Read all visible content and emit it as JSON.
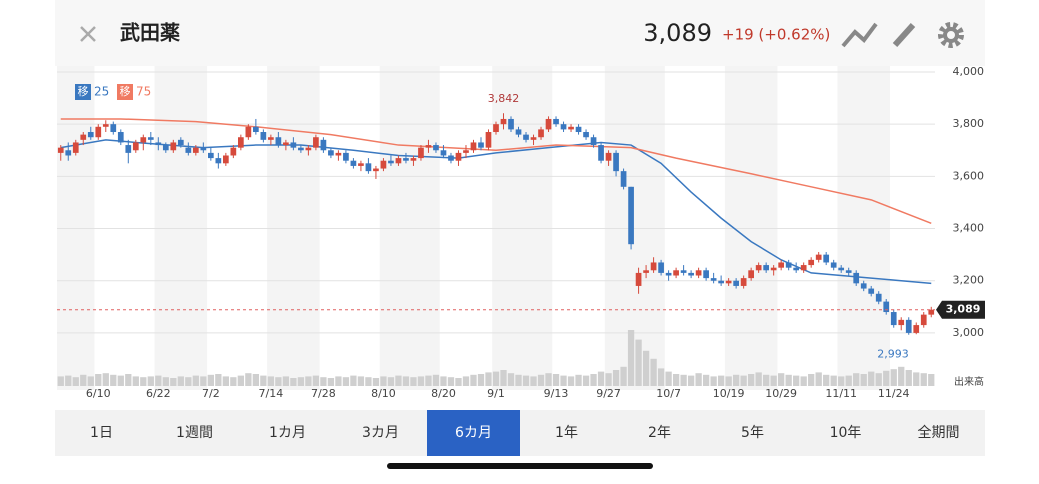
{
  "header": {
    "title": "武田薬",
    "price": {
      "value": 3089,
      "label": "3,089"
    },
    "change": "+19 (+0.62%)"
  },
  "chart_data": {
    "type": "candlestick",
    "categories": [
      null,
      null,
      null,
      null,
      null,
      "6/10",
      null,
      null,
      null,
      null,
      null,
      null,
      null,
      "6/22",
      null,
      null,
      null,
      null,
      null,
      null,
      "7/2",
      null,
      null,
      null,
      null,
      null,
      null,
      null,
      "7/14",
      null,
      null,
      null,
      null,
      null,
      null,
      "7/28",
      null,
      null,
      null,
      null,
      null,
      null,
      null,
      "8/10",
      null,
      null,
      null,
      null,
      null,
      null,
      null,
      "8/20",
      null,
      null,
      null,
      null,
      null,
      null,
      "9/1",
      null,
      null,
      null,
      null,
      null,
      null,
      null,
      "9/13",
      null,
      null,
      null,
      null,
      null,
      null,
      "9/27",
      null,
      null,
      null,
      null,
      null,
      null,
      null,
      "10/7",
      null,
      null,
      null,
      null,
      null,
      null,
      null,
      "10/19",
      null,
      null,
      null,
      null,
      null,
      null,
      "10/29",
      null,
      null,
      null,
      null,
      null,
      null,
      null,
      "11/11",
      null,
      null,
      null,
      null,
      null,
      null,
      "11/24",
      null,
      null,
      null,
      null,
      null
    ],
    "candles": [
      [
        3690,
        3720,
        3660,
        3710
      ],
      [
        3700,
        3730,
        3660,
        3680
      ],
      [
        3690,
        3740,
        3680,
        3730
      ],
      [
        3740,
        3770,
        3720,
        3760
      ],
      [
        3770,
        3790,
        3740,
        3750
      ],
      [
        3750,
        3800,
        3740,
        3790
      ],
      [
        3790,
        3815,
        3770,
        3800
      ],
      [
        3800,
        3810,
        3760,
        3770
      ],
      [
        3770,
        3780,
        3720,
        3730
      ],
      [
        3720,
        3740,
        3650,
        3690
      ],
      [
        3700,
        3740,
        3690,
        3730
      ],
      [
        3730,
        3760,
        3700,
        3750
      ],
      [
        3750,
        3770,
        3720,
        3740
      ],
      [
        3730,
        3750,
        3700,
        3720
      ],
      [
        3720,
        3730,
        3690,
        3700
      ],
      [
        3700,
        3740,
        3690,
        3730
      ],
      [
        3740,
        3750,
        3710,
        3720
      ],
      [
        3710,
        3730,
        3680,
        3690
      ],
      [
        3690,
        3720,
        3680,
        3710
      ],
      [
        3710,
        3730,
        3690,
        3700
      ],
      [
        3690,
        3710,
        3660,
        3670
      ],
      [
        3670,
        3690,
        3630,
        3650
      ],
      [
        3650,
        3690,
        3640,
        3680
      ],
      [
        3680,
        3720,
        3670,
        3710
      ],
      [
        3710,
        3760,
        3700,
        3750
      ],
      [
        3750,
        3800,
        3740,
        3790
      ],
      [
        3790,
        3820,
        3760,
        3770
      ],
      [
        3770,
        3780,
        3730,
        3740
      ],
      [
        3740,
        3760,
        3720,
        3750
      ],
      [
        3750,
        3770,
        3710,
        3720
      ],
      [
        3720,
        3740,
        3700,
        3730
      ],
      [
        3730,
        3750,
        3700,
        3710
      ],
      [
        3710,
        3720,
        3690,
        3700
      ],
      [
        3700,
        3720,
        3680,
        3710
      ],
      [
        3710,
        3760,
        3700,
        3750
      ],
      [
        3740,
        3750,
        3690,
        3700
      ],
      [
        3700,
        3710,
        3670,
        3680
      ],
      [
        3680,
        3700,
        3660,
        3690
      ],
      [
        3690,
        3700,
        3650,
        3660
      ],
      [
        3660,
        3670,
        3630,
        3640
      ],
      [
        3640,
        3660,
        3620,
        3650
      ],
      [
        3650,
        3670,
        3610,
        3620
      ],
      [
        3620,
        3640,
        3590,
        3630
      ],
      [
        3630,
        3670,
        3620,
        3660
      ],
      [
        3660,
        3680,
        3640,
        3650
      ],
      [
        3650,
        3680,
        3640,
        3670
      ],
      [
        3670,
        3690,
        3650,
        3660
      ],
      [
        3660,
        3680,
        3640,
        3670
      ],
      [
        3670,
        3720,
        3660,
        3710
      ],
      [
        3710,
        3740,
        3690,
        3720
      ],
      [
        3720,
        3730,
        3690,
        3700
      ],
      [
        3700,
        3720,
        3670,
        3680
      ],
      [
        3680,
        3690,
        3650,
        3660
      ],
      [
        3660,
        3700,
        3640,
        3690
      ],
      [
        3690,
        3720,
        3670,
        3700
      ],
      [
        3700,
        3740,
        3690,
        3730
      ],
      [
        3730,
        3750,
        3700,
        3710
      ],
      [
        3710,
        3780,
        3700,
        3770
      ],
      [
        3770,
        3810,
        3760,
        3800
      ],
      [
        3800,
        3842,
        3780,
        3820
      ],
      [
        3820,
        3830,
        3770,
        3780
      ],
      [
        3780,
        3790,
        3750,
        3760
      ],
      [
        3760,
        3770,
        3730,
        3740
      ],
      [
        3740,
        3760,
        3720,
        3750
      ],
      [
        3750,
        3790,
        3740,
        3780
      ],
      [
        3780,
        3830,
        3770,
        3820
      ],
      [
        3820,
        3830,
        3790,
        3800
      ],
      [
        3800,
        3810,
        3770,
        3780
      ],
      [
        3780,
        3800,
        3770,
        3790
      ],
      [
        3790,
        3800,
        3760,
        3770
      ],
      [
        3770,
        3780,
        3740,
        3750
      ],
      [
        3750,
        3760,
        3710,
        3720
      ],
      [
        3720,
        3730,
        3650,
        3660
      ],
      [
        3660,
        3700,
        3640,
        3690
      ],
      [
        3690,
        3700,
        3600,
        3620
      ],
      [
        3620,
        3630,
        3550,
        3560
      ],
      [
        3560,
        3560,
        3320,
        3340
      ],
      [
        3180,
        3250,
        3150,
        3230
      ],
      [
        3230,
        3260,
        3210,
        3240
      ],
      [
        3240,
        3290,
        3230,
        3270
      ],
      [
        3270,
        3280,
        3220,
        3230
      ],
      [
        3230,
        3240,
        3200,
        3220
      ],
      [
        3220,
        3250,
        3210,
        3240
      ],
      [
        3240,
        3260,
        3220,
        3230
      ],
      [
        3230,
        3240,
        3210,
        3220
      ],
      [
        3220,
        3250,
        3210,
        3240
      ],
      [
        3240,
        3250,
        3200,
        3210
      ],
      [
        3210,
        3230,
        3190,
        3200
      ],
      [
        3200,
        3220,
        3180,
        3190
      ],
      [
        3190,
        3210,
        3180,
        3200
      ],
      [
        3200,
        3210,
        3170,
        3180
      ],
      [
        3180,
        3220,
        3170,
        3210
      ],
      [
        3210,
        3250,
        3200,
        3240
      ],
      [
        3240,
        3270,
        3230,
        3260
      ],
      [
        3260,
        3270,
        3230,
        3240
      ],
      [
        3240,
        3260,
        3220,
        3250
      ],
      [
        3250,
        3280,
        3240,
        3270
      ],
      [
        3270,
        3280,
        3240,
        3250
      ],
      [
        3250,
        3270,
        3230,
        3240
      ],
      [
        3240,
        3270,
        3230,
        3260
      ],
      [
        3260,
        3290,
        3250,
        3280
      ],
      [
        3280,
        3310,
        3270,
        3300
      ],
      [
        3300,
        3310,
        3260,
        3270
      ],
      [
        3270,
        3280,
        3240,
        3250
      ],
      [
        3250,
        3260,
        3230,
        3240
      ],
      [
        3240,
        3250,
        3220,
        3230
      ],
      [
        3230,
        3240,
        3180,
        3190
      ],
      [
        3190,
        3200,
        3160,
        3170
      ],
      [
        3170,
        3180,
        3140,
        3150
      ],
      [
        3150,
        3160,
        3110,
        3120
      ],
      [
        3120,
        3130,
        3070,
        3080
      ],
      [
        3080,
        3090,
        3020,
        3030
      ],
      [
        3030,
        3060,
        3010,
        3050
      ],
      [
        3050,
        3060,
        2993,
        3000
      ],
      [
        3000,
        3040,
        2995,
        3030
      ],
      [
        3030,
        3080,
        3020,
        3070
      ],
      [
        3070,
        3100,
        3060,
        3089
      ]
    ],
    "volume": [
      12,
      13,
      11,
      14,
      12,
      15,
      16,
      14,
      13,
      15,
      12,
      11,
      12,
      13,
      11,
      10,
      12,
      11,
      13,
      12,
      14,
      15,
      12,
      11,
      13,
      16,
      15,
      13,
      12,
      11,
      12,
      10,
      11,
      12,
      13,
      11,
      10,
      12,
      11,
      13,
      12,
      11,
      10,
      12,
      11,
      13,
      12,
      11,
      12,
      13,
      14,
      12,
      11,
      10,
      12,
      14,
      15,
      17,
      18,
      20,
      16,
      14,
      13,
      12,
      14,
      16,
      15,
      13,
      12,
      14,
      13,
      15,
      18,
      16,
      20,
      24,
      70,
      58,
      44,
      34,
      22,
      18,
      15,
      14,
      13,
      16,
      14,
      12,
      13,
      12,
      14,
      13,
      15,
      17,
      14,
      13,
      16,
      14,
      13,
      12,
      15,
      17,
      14,
      13,
      12,
      13,
      16,
      15,
      18,
      16,
      19,
      21,
      24,
      20,
      17,
      16,
      15
    ],
    "volume_label": "出来高",
    "series": [
      {
        "name": "25",
        "color": "#3a78c0",
        "x": [
          0,
          6,
          10,
          19,
          26,
          32,
          39,
          45,
          53,
          58,
          65,
          72,
          76,
          80,
          84,
          88,
          92,
          96,
          100,
          104,
          108,
          112,
          116
        ],
        "values": [
          3710,
          3740,
          3730,
          3710,
          3720,
          3720,
          3700,
          3680,
          3670,
          3690,
          3710,
          3730,
          3720,
          3650,
          3540,
          3440,
          3350,
          3280,
          3230,
          3220,
          3210,
          3200,
          3190
        ]
      },
      {
        "name": "75",
        "color": "#f07a62",
        "x": [
          0,
          8,
          18,
          26,
          36,
          45,
          58,
          66,
          76,
          82,
          92,
          100,
          108,
          116
        ],
        "values": [
          3820,
          3820,
          3810,
          3790,
          3760,
          3720,
          3700,
          3720,
          3710,
          3670,
          3610,
          3560,
          3510,
          3420
        ]
      }
    ],
    "legend_badge": "移",
    "up_color": "#d64a3c",
    "down_color": "#3a78c0",
    "ylim": [
      2900,
      4000
    ],
    "yticks": [
      {
        "value": 3000,
        "label": "3,000"
      },
      {
        "value": 3200,
        "label": "3,200"
      },
      {
        "value": 3400,
        "label": "3,400"
      },
      {
        "value": 3600,
        "label": "3,600"
      },
      {
        "value": 3800,
        "label": "3,800"
      },
      {
        "value": 4000,
        "label": "4,000"
      }
    ],
    "grid": true,
    "high": {
      "index": 59,
      "value": 3842,
      "label": "3,842"
    },
    "low": {
      "index": 113,
      "value": 2993,
      "label": "2,993"
    }
  },
  "tabs": [
    "1日",
    "1週間",
    "1カ月",
    "3カ月",
    "6カ月",
    "1年",
    "2年",
    "5年",
    "10年",
    "全期間"
  ],
  "selected_tab": 4
}
